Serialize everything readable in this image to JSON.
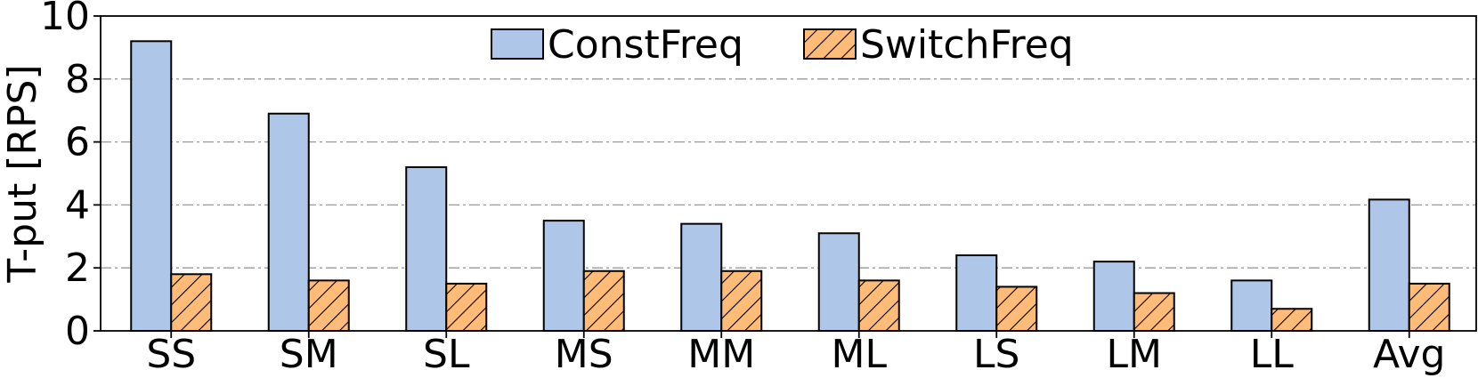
{
  "chart_data": {
    "type": "bar",
    "categories": [
      "SS",
      "SM",
      "SL",
      "MS",
      "MM",
      "ML",
      "LS",
      "LM",
      "LL",
      "Avg"
    ],
    "series": [
      {
        "name": "ConstFreq",
        "values": [
          9.2,
          6.9,
          5.2,
          3.5,
          3.4,
          3.1,
          2.4,
          2.2,
          1.6,
          4.17
        ],
        "color": "#aec7e8",
        "pattern": "solid"
      },
      {
        "name": "SwitchFreq",
        "values": [
          1.8,
          1.6,
          1.5,
          1.9,
          1.9,
          1.6,
          1.4,
          1.2,
          0.7,
          1.5
        ],
        "color": "#ffbb78",
        "pattern": "diagonal-hatch"
      }
    ],
    "title": "",
    "xlabel": "",
    "ylabel": "T-put [RPS]",
    "ylim": [
      0,
      10
    ],
    "yticks": [
      0,
      2,
      4,
      6,
      8,
      10
    ],
    "grid": "horizontal dash-dot",
    "legend": "top-center"
  }
}
